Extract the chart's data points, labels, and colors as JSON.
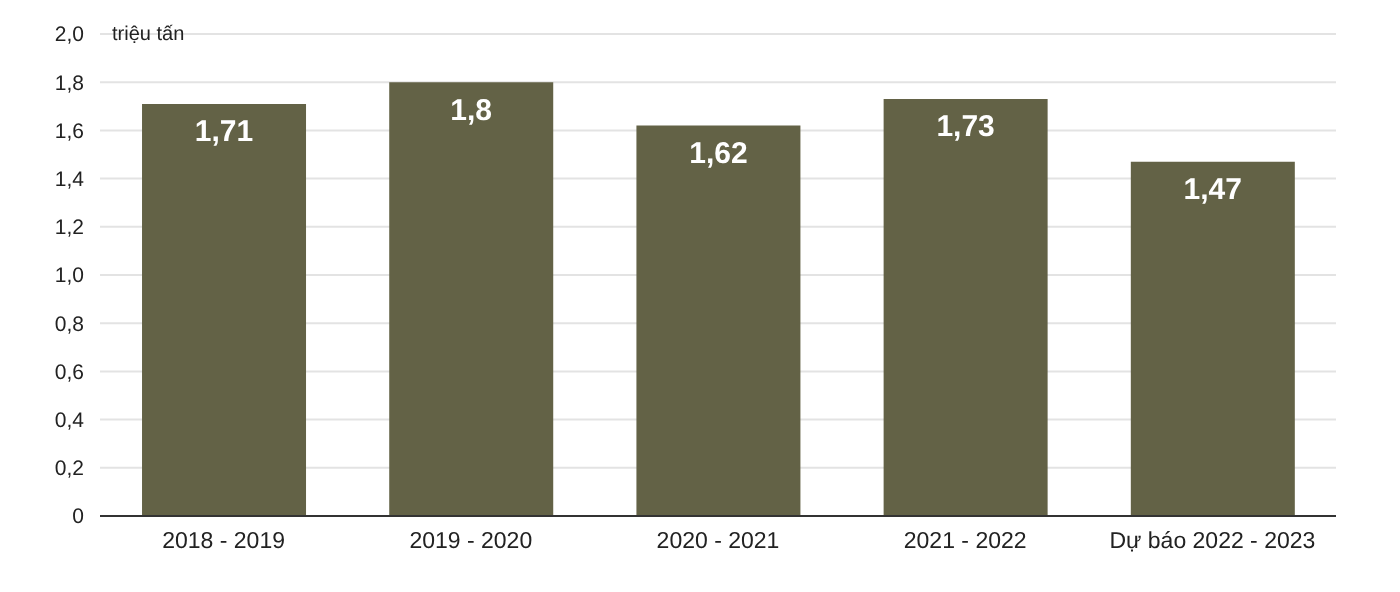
{
  "chart_data": {
    "type": "bar",
    "ylabel": "triệu tấn",
    "categories": [
      "2018 - 2019",
      "2019 - 2020",
      "2020 - 2021",
      "2021 - 2022",
      "Dự báo 2022 - 2023"
    ],
    "values": [
      1.71,
      1.8,
      1.62,
      1.73,
      1.47
    ],
    "value_labels": [
      "1,71",
      "1,8",
      "1,62",
      "1,73",
      "1,47"
    ],
    "color": "#636246",
    "ylim": [
      0,
      2
    ],
    "yticks": [
      0,
      {
        "value": 0.2,
        "label": "0,2"
      },
      {
        "value": 0.4,
        "label": "0,4"
      },
      {
        "value": 0.6,
        "label": "0,6"
      },
      {
        "value": 0.8,
        "label": "0,8"
      },
      {
        "value": 1,
        "label": "1,0"
      },
      {
        "value": 1.2,
        "label": "1,2"
      },
      {
        "value": 1.4,
        "label": "1,4"
      },
      {
        "value": 1.6,
        "label": "1,6"
      },
      {
        "value": 1.8,
        "label": "1,8"
      },
      {
        "value": 2,
        "label": "2,0"
      }
    ],
    "grid": "y",
    "legend": false
  }
}
